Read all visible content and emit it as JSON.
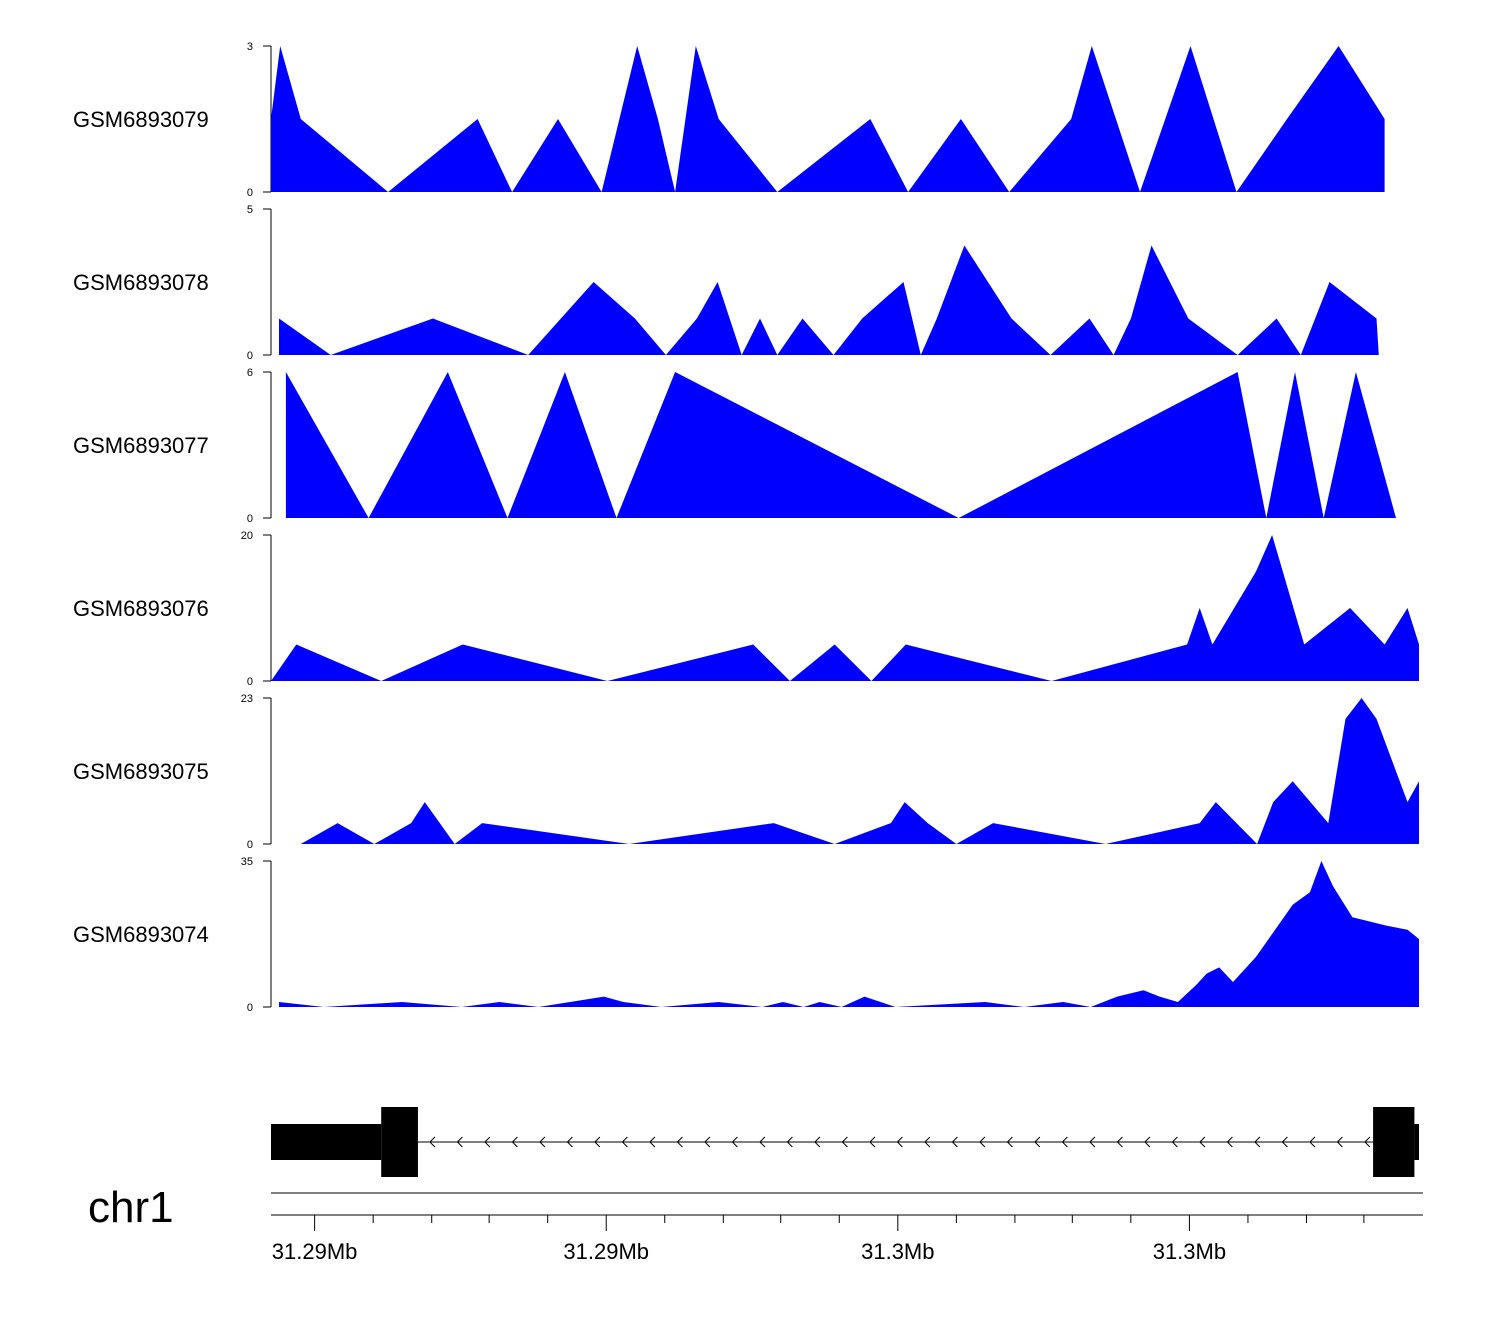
{
  "colors": {
    "signal_fill": "#0000ff",
    "gene_fill": "#000000",
    "axis": "#000000",
    "background": "#ffffff"
  },
  "chart_data": {
    "type": "area",
    "title": "",
    "chromosome": "chr1",
    "x_tick_labels": [
      "31.29Mb",
      "31.29Mb",
      "31.3Mb",
      "31.3Mb"
    ],
    "x_tick_label_positions": [
      0.038,
      0.292,
      0.546,
      0.8
    ],
    "x_minor_tick_positions": [
      0.089,
      0.14,
      0.19,
      0.241,
      0.343,
      0.394,
      0.444,
      0.495,
      0.597,
      0.648,
      0.698,
      0.749,
      0.851,
      0.902,
      0.952
    ],
    "xlim": [
      0,
      1
    ],
    "grid": false,
    "legend": "none",
    "tracks": [
      {
        "name": "GSM6893079",
        "ylim": [
          0,
          3
        ],
        "y_tick_labels": [
          "3",
          "0"
        ],
        "x": [
          0.0,
          0.008,
          0.026,
          0.102,
          0.18,
          0.21,
          0.25,
          0.288,
          0.319,
          0.337,
          0.352,
          0.37,
          0.39,
          0.441,
          0.522,
          0.555,
          0.601,
          0.643,
          0.697,
          0.715,
          0.757,
          0.801,
          0.841,
          0.885,
          0.93,
          0.97
        ],
        "y": [
          1.5,
          3.0,
          1.5,
          0.0,
          1.5,
          0.0,
          1.5,
          0.0,
          3.0,
          1.5,
          0.0,
          3.0,
          1.5,
          0.0,
          1.5,
          0.0,
          1.5,
          0.0,
          1.5,
          3.0,
          0.0,
          3.0,
          0.0,
          1.5,
          3.0,
          1.5
        ],
        "x_end": 0.97
      },
      {
        "name": "GSM6893078",
        "ylim": [
          0,
          5
        ],
        "y_tick_labels": [
          "5",
          "0"
        ],
        "x": [
          0.007,
          0.052,
          0.141,
          0.224,
          0.281,
          0.317,
          0.344,
          0.371,
          0.389,
          0.41,
          0.426,
          0.441,
          0.463,
          0.49,
          0.515,
          0.551,
          0.566,
          0.58,
          0.604,
          0.645,
          0.679,
          0.713,
          0.734,
          0.749,
          0.767,
          0.799,
          0.842,
          0.876,
          0.897,
          0.922
        ],
        "y": [
          1.25,
          0.0,
          1.25,
          0.0,
          2.5,
          1.25,
          0.0,
          1.25,
          2.5,
          0.0,
          1.25,
          0.0,
          1.25,
          0.0,
          1.25,
          2.5,
          0.0,
          1.25,
          3.75,
          1.25,
          0.0,
          1.25,
          0.0,
          1.25,
          3.75,
          1.25,
          0.0,
          1.25,
          0.0,
          2.5
        ],
        "x_end": 0.965,
        "y_end": 1.25,
        "x_last": 0.963
      },
      {
        "name": "GSM6893077",
        "ylim": [
          0,
          6
        ],
        "y_tick_labels": [
          "6",
          "0"
        ],
        "x": [
          0.013,
          0.085,
          0.154,
          0.206,
          0.256,
          0.301,
          0.352,
          0.599,
          0.842,
          0.867,
          0.892,
          0.917,
          0.945,
          0.98
        ],
        "y": [
          6.0,
          0.0,
          6.0,
          0.0,
          6.0,
          0.0,
          6.0,
          0.0,
          6.0,
          0.0,
          6.0,
          0.0,
          6.0,
          0.0
        ],
        "x_end": 0.98
      },
      {
        "name": "GSM6893076",
        "ylim": [
          0,
          20
        ],
        "y_tick_labels": [
          "20",
          "0"
        ],
        "x": [
          0.0,
          0.022,
          0.096,
          0.167,
          0.293,
          0.42,
          0.452,
          0.491,
          0.523,
          0.553,
          0.68,
          0.798,
          0.809,
          0.82,
          0.858,
          0.872,
          0.9,
          0.94,
          0.97,
          0.99,
          1.0
        ],
        "y": [
          0.0,
          5.0,
          0.0,
          5.0,
          0.0,
          5.0,
          0.0,
          5.0,
          0.0,
          5.0,
          0.0,
          5.0,
          10.0,
          5.0,
          15.0,
          20.0,
          5.0,
          10.0,
          5.0,
          10.0,
          5.0
        ],
        "x_end": 1.0
      },
      {
        "name": "GSM6893075",
        "ylim": [
          0,
          23
        ],
        "y_tick_labels": [
          "23",
          "0"
        ],
        "x": [
          0.026,
          0.058,
          0.09,
          0.122,
          0.134,
          0.16,
          0.184,
          0.312,
          0.438,
          0.491,
          0.54,
          0.552,
          0.572,
          0.597,
          0.629,
          0.727,
          0.809,
          0.823,
          0.859,
          0.873,
          0.89,
          0.921,
          0.936,
          0.95,
          0.963,
          0.99,
          1.0
        ],
        "y": [
          0.0,
          3.3,
          0.0,
          3.3,
          6.6,
          0.0,
          3.3,
          0.0,
          3.3,
          0.0,
          3.3,
          6.6,
          3.3,
          0.0,
          3.3,
          0.0,
          3.3,
          6.6,
          0.0,
          6.6,
          9.9,
          3.3,
          19.7,
          23.0,
          19.7,
          6.6,
          9.9
        ],
        "x_end": 1.0
      },
      {
        "name": "GSM6893074",
        "ylim": [
          0,
          35
        ],
        "y_tick_labels": [
          "35",
          "0"
        ],
        "x": [
          0.007,
          0.046,
          0.114,
          0.166,
          0.199,
          0.233,
          0.29,
          0.307,
          0.34,
          0.39,
          0.428,
          0.446,
          0.464,
          0.478,
          0.497,
          0.517,
          0.544,
          0.622,
          0.656,
          0.69,
          0.714,
          0.737,
          0.76,
          0.774,
          0.79,
          0.806,
          0.815,
          0.826,
          0.838,
          0.858,
          0.89,
          0.905,
          0.915,
          0.925,
          0.942,
          0.972,
          0.99,
          1.0
        ],
        "y": [
          1.2,
          0.0,
          1.2,
          0.0,
          1.2,
          0.0,
          2.5,
          1.2,
          0.0,
          1.2,
          0.0,
          1.2,
          0.0,
          1.2,
          0.0,
          2.5,
          0.0,
          1.2,
          0.0,
          1.2,
          0.0,
          2.5,
          4.0,
          2.5,
          1.2,
          5.3,
          8.0,
          9.5,
          6.0,
          12.0,
          24.5,
          27.5,
          35.0,
          29.0,
          21.5,
          19.5,
          18.5,
          16.3
        ],
        "x_end": 1.0
      }
    ],
    "gene_model": {
      "strand": "-",
      "exons": [
        {
          "start": 0.0,
          "end": 0.096,
          "kind": "utr"
        },
        {
          "start": 0.096,
          "end": 0.128,
          "kind": "cds"
        },
        {
          "start": 0.96,
          "end": 0.996,
          "kind": "cds"
        },
        {
          "start": 0.996,
          "end": 1.0,
          "kind": "utr"
        }
      ],
      "intron": {
        "start": 0.128,
        "end": 0.96
      }
    }
  }
}
